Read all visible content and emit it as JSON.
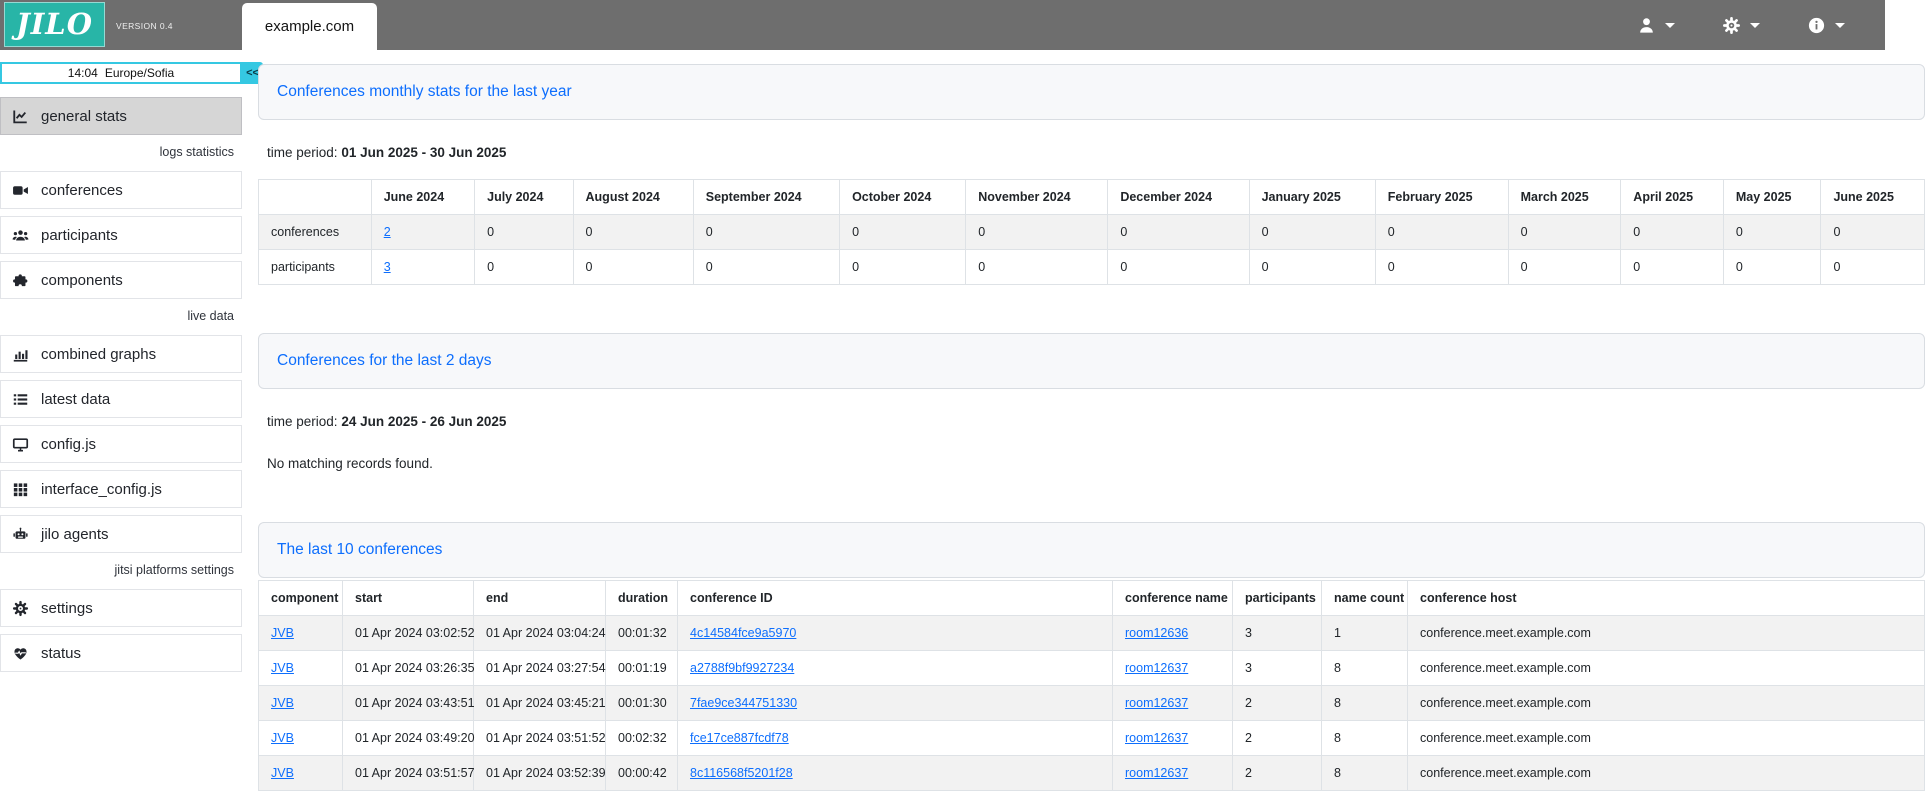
{
  "colors": {
    "topbar": "#6e6e6e",
    "brand_teal": "#28b5a7",
    "accent_cyan": "#35c8e2",
    "link_blue": "#0d6efd"
  },
  "topbar": {
    "logo_text": "JILO",
    "version": "VERSION 0.4",
    "tab_label": "example.com",
    "menus": [
      {
        "name": "user-menu",
        "icon": "user-icon"
      },
      {
        "name": "settings-menu",
        "icon": "gear-icon"
      },
      {
        "name": "info-menu",
        "icon": "info-icon"
      }
    ]
  },
  "sidebar": {
    "clock": {
      "time": "14:04",
      "timezone": "Europe/Sofia",
      "collapse_label": "<<"
    },
    "nav": [
      {
        "type": "item",
        "label": "general stats",
        "icon": "chart-line-icon",
        "active": true
      },
      {
        "type": "label",
        "label": "logs statistics"
      },
      {
        "type": "item",
        "label": "conferences",
        "icon": "video-camera-icon"
      },
      {
        "type": "item",
        "label": "participants",
        "icon": "users-icon"
      },
      {
        "type": "item",
        "label": "components",
        "icon": "puzzle-piece-icon"
      },
      {
        "type": "label",
        "label": "live data"
      },
      {
        "type": "item",
        "label": "combined graphs",
        "icon": "bar-chart-icon"
      },
      {
        "type": "item",
        "label": "latest data",
        "icon": "list-icon"
      },
      {
        "type": "item",
        "label": "config.js",
        "icon": "monitor-icon"
      },
      {
        "type": "item",
        "label": "interface_config.js",
        "icon": "grid-icon"
      },
      {
        "type": "item",
        "label": "jilo agents",
        "icon": "robot-icon"
      },
      {
        "type": "label",
        "label": "jitsi platforms settings"
      },
      {
        "type": "item",
        "label": "settings",
        "icon": "gear-icon"
      },
      {
        "type": "item",
        "label": "status",
        "icon": "heart-pulse-icon"
      }
    ]
  },
  "main": {
    "monthly": {
      "title": "Conferences monthly stats for the last year",
      "time_period_label": "time period:",
      "time_period": "01 Jun 2025 - 30 Jun 2025",
      "table": {
        "columns": [
          "June 2024",
          "July 2024",
          "August 2024",
          "September 2024",
          "October 2024",
          "November 2024",
          "December 2024",
          "January 2025",
          "February 2025",
          "March 2025",
          "April 2025",
          "May 2025",
          "June 2025"
        ],
        "rows": [
          {
            "label": "conferences",
            "link_value_index": 0,
            "values": [
              "2",
              "0",
              "0",
              "0",
              "0",
              "0",
              "0",
              "0",
              "0",
              "0",
              "0",
              "0",
              "0"
            ]
          },
          {
            "label": "participants",
            "link_value_index": 0,
            "values": [
              "3",
              "0",
              "0",
              "0",
              "0",
              "0",
              "0",
              "0",
              "0",
              "0",
              "0",
              "0",
              "0"
            ]
          }
        ]
      }
    },
    "recent": {
      "title": "Conferences for the last 2 days",
      "time_period_label": "time period:",
      "time_period": "24 Jun 2025 - 26 Jun 2025",
      "empty_message": "No matching records found."
    },
    "last10": {
      "title": "The last 10 conferences",
      "table": {
        "columns": [
          "component",
          "start",
          "end",
          "duration",
          "conference ID",
          "conference name",
          "participants",
          "name count",
          "conference host"
        ],
        "link_columns": [
          0,
          4,
          5
        ],
        "rows": [
          [
            "JVB",
            "01 Apr 2024 03:02:52",
            "01 Apr 2024 03:04:24",
            "00:01:32",
            "4c14584fce9a5970",
            "room12636",
            "3",
            "1",
            "conference.meet.example.com"
          ],
          [
            "JVB",
            "01 Apr 2024 03:26:35",
            "01 Apr 2024 03:27:54",
            "00:01:19",
            "a2788f9bf9927234",
            "room12637",
            "3",
            "8",
            "conference.meet.example.com"
          ],
          [
            "JVB",
            "01 Apr 2024 03:43:51",
            "01 Apr 2024 03:45:21",
            "00:01:30",
            "7fae9ce344751330",
            "room12637",
            "2",
            "8",
            "conference.meet.example.com"
          ],
          [
            "JVB",
            "01 Apr 2024 03:49:20",
            "01 Apr 2024 03:51:52",
            "00:02:32",
            "fce17ce887fcdf78",
            "room12637",
            "2",
            "8",
            "conference.meet.example.com"
          ],
          [
            "JVB",
            "01 Apr 2024 03:51:57",
            "01 Apr 2024 03:52:39",
            "00:00:42",
            "8c116568f5201f28",
            "room12637",
            "2",
            "8",
            "conference.meet.example.com"
          ]
        ]
      }
    }
  }
}
